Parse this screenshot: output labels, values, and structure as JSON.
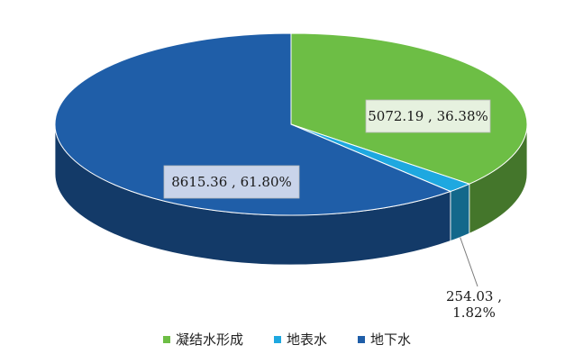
{
  "chart_data": {
    "type": "pie",
    "style": "3d",
    "categories": [
      "凝结水形成",
      "地表水",
      "地下水"
    ],
    "values": [
      5072.19,
      254.03,
      8615.36
    ],
    "percents": [
      "36.38%",
      "1.82%",
      "61.80%"
    ],
    "data_labels": [
      "5072.19 , 36.38%",
      "254.03 ,\n1.82%",
      "8615.36 , 61.80%"
    ],
    "colors": [
      "#6DBE45",
      "#1EA8E0",
      "#1F5EA8"
    ],
    "legend_position": "bottom",
    "title": ""
  }
}
